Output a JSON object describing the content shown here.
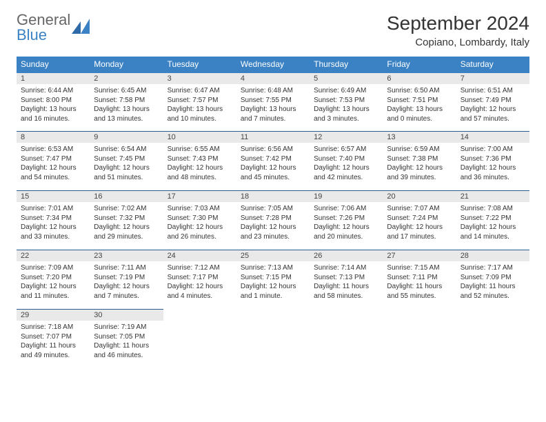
{
  "logo": {
    "general": "General",
    "blue": "Blue"
  },
  "title": "September 2024",
  "location": "Copiano, Lombardy, Italy",
  "colors": {
    "header_bg": "#3b82c4",
    "header_text": "#ffffff",
    "daynum_bg": "#e9e9e9",
    "row_sep": "#2a5a8a",
    "text": "#333333"
  },
  "weekdays": [
    "Sunday",
    "Monday",
    "Tuesday",
    "Wednesday",
    "Thursday",
    "Friday",
    "Saturday"
  ],
  "days": [
    {
      "n": "1",
      "sr": "Sunrise: 6:44 AM",
      "ss": "Sunset: 8:00 PM",
      "dl": "Daylight: 13 hours and 16 minutes."
    },
    {
      "n": "2",
      "sr": "Sunrise: 6:45 AM",
      "ss": "Sunset: 7:58 PM",
      "dl": "Daylight: 13 hours and 13 minutes."
    },
    {
      "n": "3",
      "sr": "Sunrise: 6:47 AM",
      "ss": "Sunset: 7:57 PM",
      "dl": "Daylight: 13 hours and 10 minutes."
    },
    {
      "n": "4",
      "sr": "Sunrise: 6:48 AM",
      "ss": "Sunset: 7:55 PM",
      "dl": "Daylight: 13 hours and 7 minutes."
    },
    {
      "n": "5",
      "sr": "Sunrise: 6:49 AM",
      "ss": "Sunset: 7:53 PM",
      "dl": "Daylight: 13 hours and 3 minutes."
    },
    {
      "n": "6",
      "sr": "Sunrise: 6:50 AM",
      "ss": "Sunset: 7:51 PM",
      "dl": "Daylight: 13 hours and 0 minutes."
    },
    {
      "n": "7",
      "sr": "Sunrise: 6:51 AM",
      "ss": "Sunset: 7:49 PM",
      "dl": "Daylight: 12 hours and 57 minutes."
    },
    {
      "n": "8",
      "sr": "Sunrise: 6:53 AM",
      "ss": "Sunset: 7:47 PM",
      "dl": "Daylight: 12 hours and 54 minutes."
    },
    {
      "n": "9",
      "sr": "Sunrise: 6:54 AM",
      "ss": "Sunset: 7:45 PM",
      "dl": "Daylight: 12 hours and 51 minutes."
    },
    {
      "n": "10",
      "sr": "Sunrise: 6:55 AM",
      "ss": "Sunset: 7:43 PM",
      "dl": "Daylight: 12 hours and 48 minutes."
    },
    {
      "n": "11",
      "sr": "Sunrise: 6:56 AM",
      "ss": "Sunset: 7:42 PM",
      "dl": "Daylight: 12 hours and 45 minutes."
    },
    {
      "n": "12",
      "sr": "Sunrise: 6:57 AM",
      "ss": "Sunset: 7:40 PM",
      "dl": "Daylight: 12 hours and 42 minutes."
    },
    {
      "n": "13",
      "sr": "Sunrise: 6:59 AM",
      "ss": "Sunset: 7:38 PM",
      "dl": "Daylight: 12 hours and 39 minutes."
    },
    {
      "n": "14",
      "sr": "Sunrise: 7:00 AM",
      "ss": "Sunset: 7:36 PM",
      "dl": "Daylight: 12 hours and 36 minutes."
    },
    {
      "n": "15",
      "sr": "Sunrise: 7:01 AM",
      "ss": "Sunset: 7:34 PM",
      "dl": "Daylight: 12 hours and 33 minutes."
    },
    {
      "n": "16",
      "sr": "Sunrise: 7:02 AM",
      "ss": "Sunset: 7:32 PM",
      "dl": "Daylight: 12 hours and 29 minutes."
    },
    {
      "n": "17",
      "sr": "Sunrise: 7:03 AM",
      "ss": "Sunset: 7:30 PM",
      "dl": "Daylight: 12 hours and 26 minutes."
    },
    {
      "n": "18",
      "sr": "Sunrise: 7:05 AM",
      "ss": "Sunset: 7:28 PM",
      "dl": "Daylight: 12 hours and 23 minutes."
    },
    {
      "n": "19",
      "sr": "Sunrise: 7:06 AM",
      "ss": "Sunset: 7:26 PM",
      "dl": "Daylight: 12 hours and 20 minutes."
    },
    {
      "n": "20",
      "sr": "Sunrise: 7:07 AM",
      "ss": "Sunset: 7:24 PM",
      "dl": "Daylight: 12 hours and 17 minutes."
    },
    {
      "n": "21",
      "sr": "Sunrise: 7:08 AM",
      "ss": "Sunset: 7:22 PM",
      "dl": "Daylight: 12 hours and 14 minutes."
    },
    {
      "n": "22",
      "sr": "Sunrise: 7:09 AM",
      "ss": "Sunset: 7:20 PM",
      "dl": "Daylight: 12 hours and 11 minutes."
    },
    {
      "n": "23",
      "sr": "Sunrise: 7:11 AM",
      "ss": "Sunset: 7:19 PM",
      "dl": "Daylight: 12 hours and 7 minutes."
    },
    {
      "n": "24",
      "sr": "Sunrise: 7:12 AM",
      "ss": "Sunset: 7:17 PM",
      "dl": "Daylight: 12 hours and 4 minutes."
    },
    {
      "n": "25",
      "sr": "Sunrise: 7:13 AM",
      "ss": "Sunset: 7:15 PM",
      "dl": "Daylight: 12 hours and 1 minute."
    },
    {
      "n": "26",
      "sr": "Sunrise: 7:14 AM",
      "ss": "Sunset: 7:13 PM",
      "dl": "Daylight: 11 hours and 58 minutes."
    },
    {
      "n": "27",
      "sr": "Sunrise: 7:15 AM",
      "ss": "Sunset: 7:11 PM",
      "dl": "Daylight: 11 hours and 55 minutes."
    },
    {
      "n": "28",
      "sr": "Sunrise: 7:17 AM",
      "ss": "Sunset: 7:09 PM",
      "dl": "Daylight: 11 hours and 52 minutes."
    },
    {
      "n": "29",
      "sr": "Sunrise: 7:18 AM",
      "ss": "Sunset: 7:07 PM",
      "dl": "Daylight: 11 hours and 49 minutes."
    },
    {
      "n": "30",
      "sr": "Sunrise: 7:19 AM",
      "ss": "Sunset: 7:05 PM",
      "dl": "Daylight: 11 hours and 46 minutes."
    }
  ]
}
